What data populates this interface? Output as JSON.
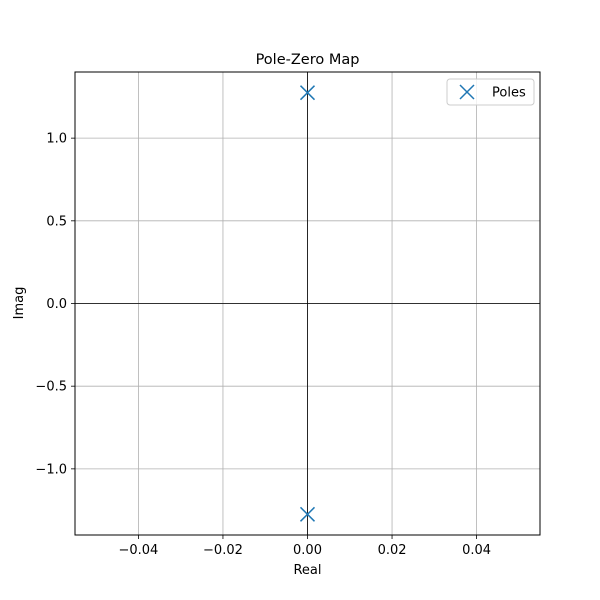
{
  "chart_data": {
    "type": "scatter",
    "title": "Pole-Zero Map",
    "xlabel": "Real",
    "ylabel": "Imag",
    "xlim": [
      -0.055,
      0.055
    ],
    "ylim": [
      -1.4,
      1.4
    ],
    "xticks": [
      -0.04,
      -0.02,
      0.0,
      0.02,
      0.04
    ],
    "xtick_labels": [
      "−0.04",
      "−0.02",
      "0.00",
      "0.02",
      "0.04"
    ],
    "yticks": [
      -1.0,
      -0.5,
      0.0,
      0.5,
      1.0
    ],
    "ytick_labels": [
      "−1.0",
      "−0.5",
      "0.0",
      "0.5",
      "1.0"
    ],
    "grid": true,
    "reference_lines": {
      "x": 0,
      "y": 0
    },
    "legend_position": "top-right",
    "series": [
      {
        "name": "Poles",
        "marker": "x",
        "color": "#1f77b4",
        "points": [
          {
            "x": 0.0,
            "y": 1.275
          },
          {
            "x": 0.0,
            "y": -1.275
          }
        ]
      }
    ]
  }
}
